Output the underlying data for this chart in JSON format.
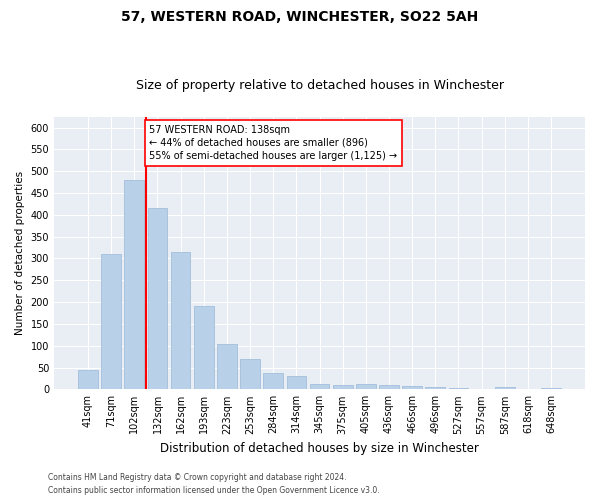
{
  "title": "57, WESTERN ROAD, WINCHESTER, SO22 5AH",
  "subtitle": "Size of property relative to detached houses in Winchester",
  "xlabel": "Distribution of detached houses by size in Winchester",
  "ylabel": "Number of detached properties",
  "bar_labels": [
    "41sqm",
    "71sqm",
    "102sqm",
    "132sqm",
    "162sqm",
    "193sqm",
    "223sqm",
    "253sqm",
    "284sqm",
    "314sqm",
    "345sqm",
    "375sqm",
    "405sqm",
    "436sqm",
    "466sqm",
    "496sqm",
    "527sqm",
    "557sqm",
    "587sqm",
    "618sqm",
    "648sqm"
  ],
  "bar_values": [
    45,
    310,
    480,
    415,
    315,
    190,
    103,
    70,
    37,
    30,
    13,
    10,
    13,
    10,
    7,
    5,
    3,
    0,
    5,
    0,
    3
  ],
  "bar_color": "#b8d0e8",
  "bar_edge_color": "#9ab8d8",
  "vline_x_pos": 2.5,
  "vline_color": "red",
  "annotation_text": "57 WESTERN ROAD: 138sqm\n← 44% of detached houses are smaller (896)\n55% of semi-detached houses are larger (1,125) →",
  "annotation_box_color": "white",
  "annotation_box_edge_color": "red",
  "ylim": [
    0,
    625
  ],
  "yticks": [
    0,
    50,
    100,
    150,
    200,
    250,
    300,
    350,
    400,
    450,
    500,
    550,
    600
  ],
  "footer_line1": "Contains HM Land Registry data © Crown copyright and database right 2024.",
  "footer_line2": "Contains public sector information licensed under the Open Government Licence v3.0.",
  "fig_background_color": "#ffffff",
  "plot_background_color": "#e8eef4",
  "grid_color": "#ffffff",
  "title_fontsize": 10,
  "subtitle_fontsize": 9,
  "xlabel_fontsize": 8.5,
  "ylabel_fontsize": 7.5,
  "tick_fontsize": 7,
  "footer_fontsize": 5.5
}
